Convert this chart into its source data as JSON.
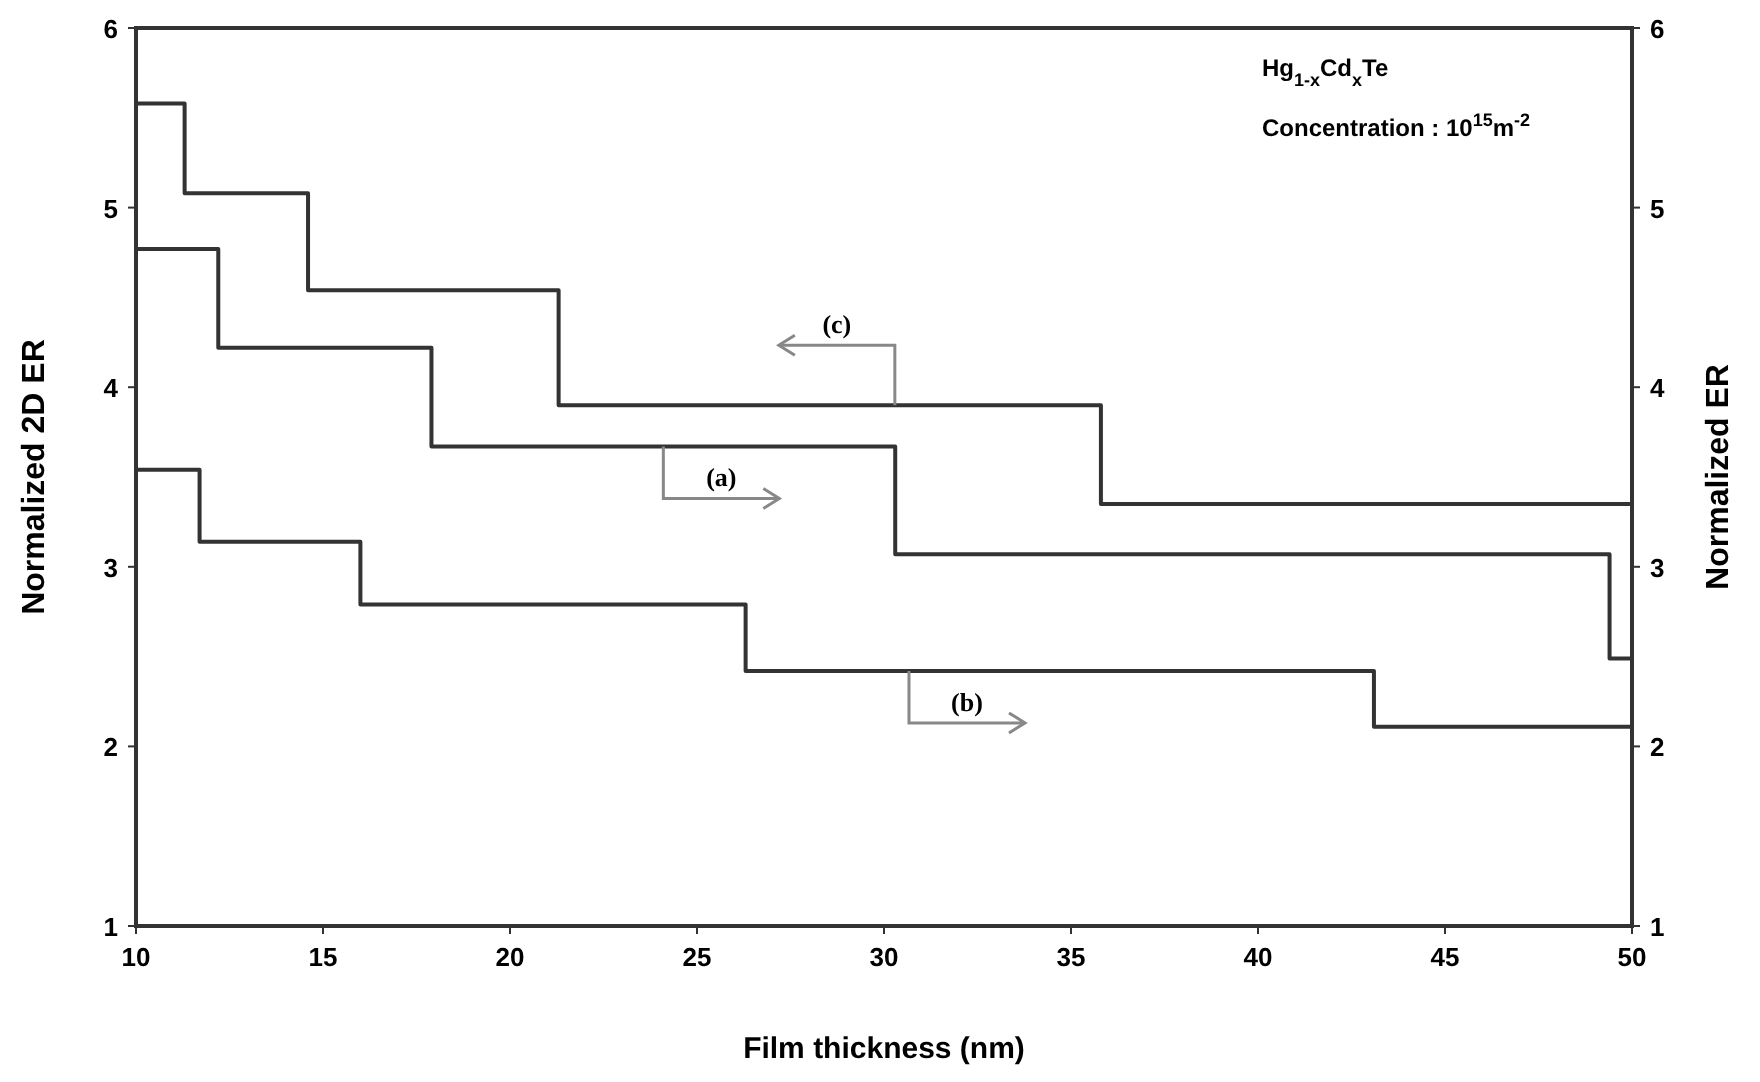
{
  "chart_data": {
    "type": "step",
    "xlabel": "Film thickness (nm)",
    "ylabel": "Normalized 2D ER",
    "y2label": "Normalized ER",
    "annotations": [
      "Hg$_{1-x}$Cd$_{x}$Te",
      "Concentration : 10$^{15}$m$^{-2}$"
    ],
    "x": [
      10,
      11.3,
      14.6,
      21.3,
      35.8,
      50
    ],
    "series": [
      {
        "name": "(a)",
        "color": "#333333",
        "axis": "y2",
        "x": [
          10,
          12.2,
          17.9,
          30.3,
          49.4,
          50
        ],
        "values": [
          4.77,
          4.22,
          3.67,
          3.07,
          2.49,
          2.49
        ]
      },
      {
        "name": "(b)",
        "color": "#333333",
        "axis": "y2",
        "x": [
          10,
          11.7,
          16.0,
          26.3,
          43.1,
          50
        ],
        "values": [
          3.54,
          3.14,
          2.79,
          2.42,
          2.11,
          2.11
        ]
      },
      {
        "name": "(c)",
        "color": "#333333",
        "values": [
          5.58,
          5.08,
          4.54,
          3.9,
          3.35,
          3.35
        ]
      }
    ],
    "xlim": [
      10,
      50
    ],
    "xticks": [
      10,
      15,
      20,
      25,
      30,
      35,
      40,
      45,
      50
    ],
    "ylim": [
      1,
      6
    ],
    "yticks": [
      1,
      2,
      3,
      4,
      5,
      6
    ],
    "y2lim": [
      1,
      6
    ],
    "y2ticks": [
      1,
      2,
      3,
      4,
      5,
      6
    ],
    "grid": false,
    "marker": "none",
    "line_style": "solid"
  }
}
